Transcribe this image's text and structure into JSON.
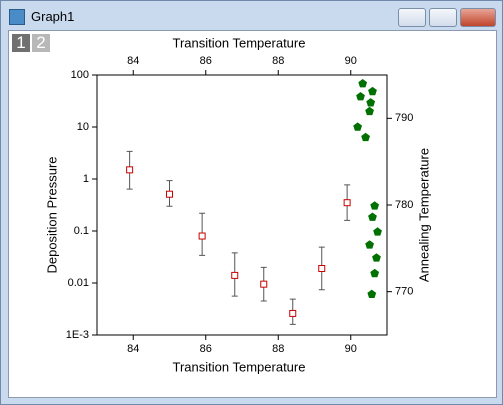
{
  "window": {
    "title": "Graph1",
    "layers": [
      "1",
      "2"
    ]
  },
  "chart_data": {
    "type": "scatter",
    "xlabel": "Transition Temperature",
    "x2label": "Transition Temperature",
    "ylabel": "Deposition Pressure",
    "y2label": "Annealing Temperature",
    "xlim": [
      83,
      91
    ],
    "xticks": [
      84,
      86,
      88,
      90
    ],
    "ylim": [
      0.001,
      100
    ],
    "ylog": true,
    "yticks": [
      100,
      10,
      1,
      0.1,
      0.01,
      {
        "value": 0.001,
        "label": "1E-3"
      }
    ],
    "y2lim": [
      765,
      795
    ],
    "y2ticks": [
      770,
      780,
      790
    ],
    "y2color": "#cc0000",
    "series": [
      {
        "color": "#cc0000",
        "marker": "square",
        "x": [
          83.9,
          85.0,
          85.9,
          86.8,
          87.6,
          88.4,
          89.2,
          89.9
        ],
        "values": [
          1.5,
          0.51,
          0.08,
          0.014,
          0.0095,
          0.0026,
          0.019,
          0.35
        ],
        "errors_minus": [
          0.86,
          0.21,
          0.046,
          0.0084,
          0.005,
          0.001,
          0.0116,
          0.19
        ],
        "errors_plus": [
          1.9,
          0.42,
          0.14,
          0.024,
          0.0105,
          0.0023,
          0.03,
          0.42
        ]
      },
      {
        "color": "#007000",
        "marker": "pentagon",
        "axis": "y2",
        "x": [
          90.33,
          90.27,
          90.6,
          90.55,
          90.52,
          90.19,
          90.41,
          90.66,
          90.6,
          90.74,
          90.52,
          90.71,
          90.66,
          90.58
        ],
        "values": [
          794.0,
          792.5,
          793.1,
          791.8,
          790.8,
          789.0,
          787.8,
          779.9,
          778.6,
          776.9,
          775.4,
          773.9,
          772.1,
          769.7
        ]
      }
    ]
  }
}
